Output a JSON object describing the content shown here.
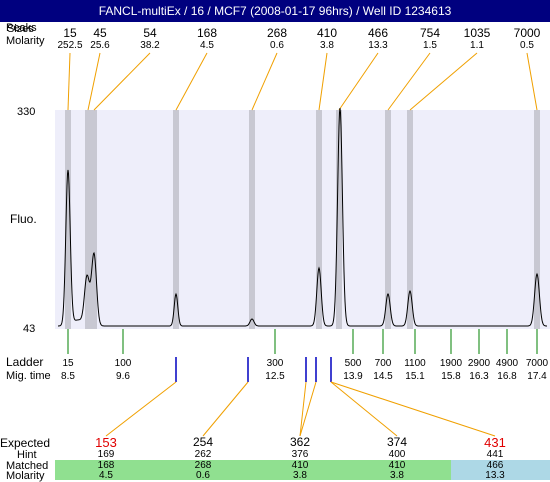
{
  "window": {
    "title": "FANCL-multiEx / 16 / MCF7 (2008-01-17 96hrs) / Well ID 1234613"
  },
  "header": {
    "row1_label": "Peaks",
    "row1_overlap_label": "Sizes",
    "row2_label": "Molarity",
    "peaks": [
      {
        "size": "15",
        "molarity": "252.5"
      },
      {
        "size": "45",
        "molarity": "25.6"
      },
      {
        "size": "54",
        "molarity": "38.2"
      },
      {
        "size": "168",
        "molarity": "4.5"
      },
      {
        "size": "268",
        "molarity": "0.6"
      },
      {
        "size": "410",
        "molarity": "3.8"
      },
      {
        "size": "466",
        "molarity": "13.3"
      },
      {
        "size": "754",
        "molarity": "1.5"
      },
      {
        "size": "1035",
        "molarity": "1.1"
      },
      {
        "size": "7000",
        "molarity": "0.5"
      }
    ]
  },
  "plot": {
    "y_axis_label": "Fluo.",
    "y_max_label": "330",
    "y_min_label": "43",
    "colors": {
      "plot_bg": "#eeeefa",
      "band": "#c8c8d2",
      "leader": "#f0a000",
      "trace": "#000000",
      "ladder_tick": "#008000",
      "marker_tick": "#0000c0"
    }
  },
  "ladder": {
    "label": "Ladder",
    "mig_label": "Mig. time",
    "items": [
      {
        "size": "15",
        "time": "8.5"
      },
      {
        "size": "100",
        "time": "9.6"
      },
      {
        "size": "300",
        "time": "12.5"
      },
      {
        "size": "500",
        "time": "13.9"
      },
      {
        "size": "700",
        "time": "14.5"
      },
      {
        "size": "1100",
        "time": "15.1"
      },
      {
        "size": "1900",
        "time": "15.8"
      },
      {
        "size": "2900",
        "time": "16.3"
      },
      {
        "size": "4900",
        "time": "16.8"
      },
      {
        "size": "7000",
        "time": "17.4"
      }
    ]
  },
  "expected": {
    "label": "Expected",
    "hint_label": "Hint",
    "matched_label": "Matched",
    "molarity_label": "Molarity",
    "colors": {
      "matched_ok": "#90e090",
      "matched_off": "#add8e6",
      "alert": "#e00000"
    },
    "columns": [
      {
        "expected": "153",
        "hint": "169",
        "matched": "168",
        "molarity": "4.5",
        "alert": true
      },
      {
        "expected": "254",
        "hint": "262",
        "matched": "268",
        "molarity": "0.6",
        "alert": false
      },
      {
        "expected": "362",
        "hint": "376",
        "matched": "410",
        "molarity": "3.8",
        "alert": false
      },
      {
        "expected": "374",
        "hint": "400",
        "matched": "410",
        "molarity": "3.8",
        "alert": false
      },
      {
        "expected": "431",
        "hint": "441",
        "matched": "466",
        "molarity": "13.3",
        "alert": true
      }
    ]
  }
}
